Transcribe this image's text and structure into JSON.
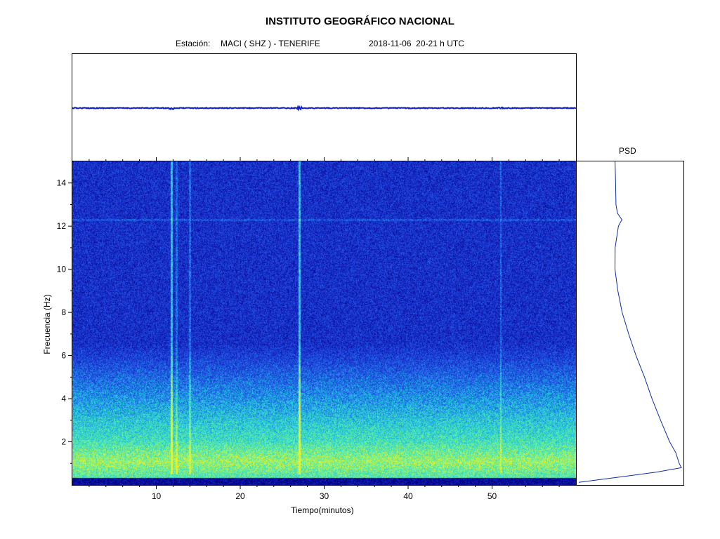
{
  "header": {
    "title": "INSTITUTO GEOGRÁFICO NACIONAL",
    "station_label": "Estación:",
    "station_value": "MACI ( SHZ ) - TENERIFE",
    "date_time": "2018-11-06  20-21 h UTC"
  },
  "psd": {
    "label": "PSD"
  },
  "colors": {
    "trace": "#1020c8",
    "psd_line": "#1030a0",
    "spectrogram_low": "#1a28c8",
    "spectrogram_mid": "#20c8e0",
    "spectrogram_high": "#f0f020"
  },
  "chart_data": [
    {
      "type": "line",
      "panel": "seismogram",
      "description_values": {
        "x_range_minutes": [
          0,
          60
        ]
      },
      "events_minutes": [
        11.8,
        27,
        51
      ]
    },
    {
      "type": "heatmap",
      "panel": "spectrogram",
      "xlabel": "Tiempo(minutos)",
      "ylabel": "Frecuencia  (Hz)",
      "xlim": [
        0,
        60
      ],
      "ylim": [
        0,
        15
      ],
      "x_ticks": [
        10,
        20,
        30,
        40,
        50
      ],
      "y_ticks": [
        2,
        4,
        6,
        8,
        10,
        12,
        14
      ],
      "colormap": [
        "#000080",
        "#1a28c8",
        "#2060e8",
        "#20c8e0",
        "#60f0a0",
        "#f0f020"
      ],
      "bright_band_hz": [
        0.5,
        2.0
      ],
      "vertical_events_minutes": [
        11.8,
        12.4,
        14,
        27,
        51
      ],
      "horizontal_line_hz": 12.3
    },
    {
      "type": "line",
      "panel": "psd",
      "title": "PSD",
      "ylim": [
        0,
        15
      ],
      "points": [
        [
          0.12,
          0.02
        ],
        [
          0.4,
          0.45
        ],
        [
          0.6,
          0.75
        ],
        [
          0.8,
          0.98
        ],
        [
          1.0,
          0.97
        ],
        [
          1.5,
          0.92
        ],
        [
          2.0,
          0.88
        ],
        [
          3.0,
          0.78
        ],
        [
          4.0,
          0.7
        ],
        [
          5.0,
          0.63
        ],
        [
          6.0,
          0.55
        ],
        [
          7.0,
          0.48
        ],
        [
          8.0,
          0.42
        ],
        [
          9.0,
          0.38
        ],
        [
          10.0,
          0.36
        ],
        [
          11.0,
          0.35
        ],
        [
          12.0,
          0.38
        ],
        [
          12.3,
          0.42
        ],
        [
          12.6,
          0.37
        ],
        [
          13.0,
          0.38
        ],
        [
          14.0,
          0.37
        ],
        [
          15.0,
          0.35
        ]
      ]
    }
  ]
}
